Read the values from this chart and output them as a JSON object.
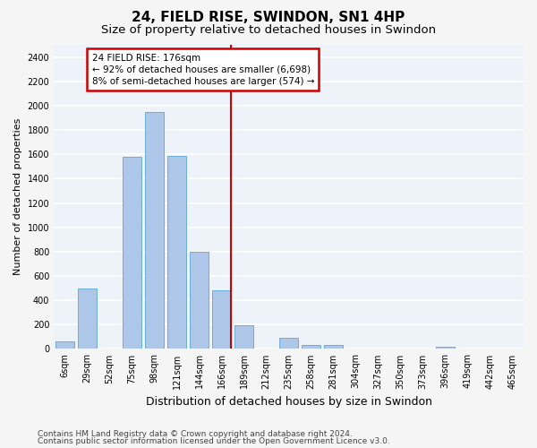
{
  "title": "24, FIELD RISE, SWINDON, SN1 4HP",
  "subtitle": "Size of property relative to detached houses in Swindon",
  "xlabel": "Distribution of detached houses by size in Swindon",
  "ylabel": "Number of detached properties",
  "categories": [
    "6sqm",
    "29sqm",
    "52sqm",
    "75sqm",
    "98sqm",
    "121sqm",
    "144sqm",
    "166sqm",
    "189sqm",
    "212sqm",
    "235sqm",
    "258sqm",
    "281sqm",
    "304sqm",
    "327sqm",
    "350sqm",
    "373sqm",
    "396sqm",
    "419sqm",
    "442sqm",
    "465sqm"
  ],
  "values": [
    60,
    500,
    0,
    1580,
    1950,
    1590,
    800,
    480,
    195,
    0,
    90,
    35,
    30,
    0,
    0,
    0,
    0,
    20,
    0,
    0,
    0
  ],
  "bar_color": "#aec6e8",
  "bar_edge_color": "#6baed6",
  "vline_color": "#cc0000",
  "annotation_text": "24 FIELD RISE: 176sqm\n← 92% of detached houses are smaller (6,698)\n8% of semi-detached houses are larger (574) →",
  "annotation_box_color": "#cc0000",
  "ylim": [
    0,
    2500
  ],
  "yticks": [
    0,
    200,
    400,
    600,
    800,
    1000,
    1200,
    1400,
    1600,
    1800,
    2000,
    2200,
    2400
  ],
  "footer1": "Contains HM Land Registry data © Crown copyright and database right 2024.",
  "footer2": "Contains public sector information licensed under the Open Government Licence v3.0.",
  "bg_color": "#eef2f9",
  "grid_color": "#ffffff",
  "fig_bg_color": "#f5f5f5",
  "title_fontsize": 11,
  "subtitle_fontsize": 9.5,
  "xlabel_fontsize": 9,
  "ylabel_fontsize": 8,
  "tick_fontsize": 7,
  "footer_fontsize": 6.5,
  "annotation_fontsize": 7.5
}
